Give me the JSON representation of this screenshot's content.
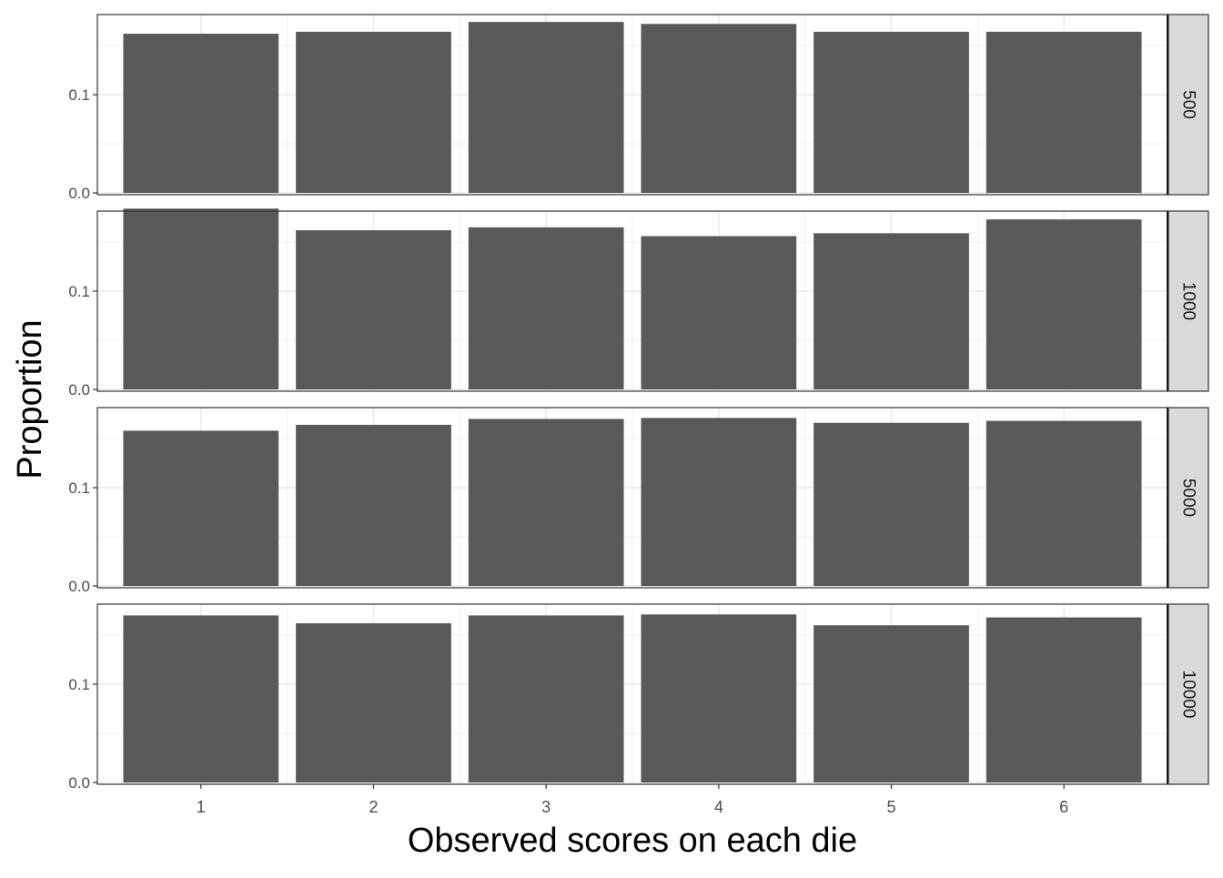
{
  "chart_data": {
    "type": "bar",
    "xlabel": "Observed scores on each die",
    "ylabel": "Proportion",
    "categories": [
      "1",
      "2",
      "3",
      "4",
      "5",
      "6"
    ],
    "y_ticks": [
      "0.0",
      "0.1"
    ],
    "ylim": [
      -0.0018,
      0.1815
    ],
    "grid": true,
    "facet_strip_position": "right",
    "colors": {
      "bar": "#595959",
      "strip": "#d9d9d9",
      "grid": "#ebebeb",
      "border": "#333333"
    },
    "facets": [
      {
        "label": "500",
        "values": [
          0.162,
          0.164,
          0.174,
          0.172,
          0.164,
          0.164
        ]
      },
      {
        "label": "1000",
        "values": [
          0.184,
          0.162,
          0.165,
          0.156,
          0.159,
          0.173
        ]
      },
      {
        "label": "5000",
        "values": [
          0.158,
          0.164,
          0.17,
          0.171,
          0.166,
          0.168
        ]
      },
      {
        "label": "10000",
        "values": [
          0.17,
          0.162,
          0.17,
          0.171,
          0.16,
          0.168
        ]
      }
    ]
  }
}
